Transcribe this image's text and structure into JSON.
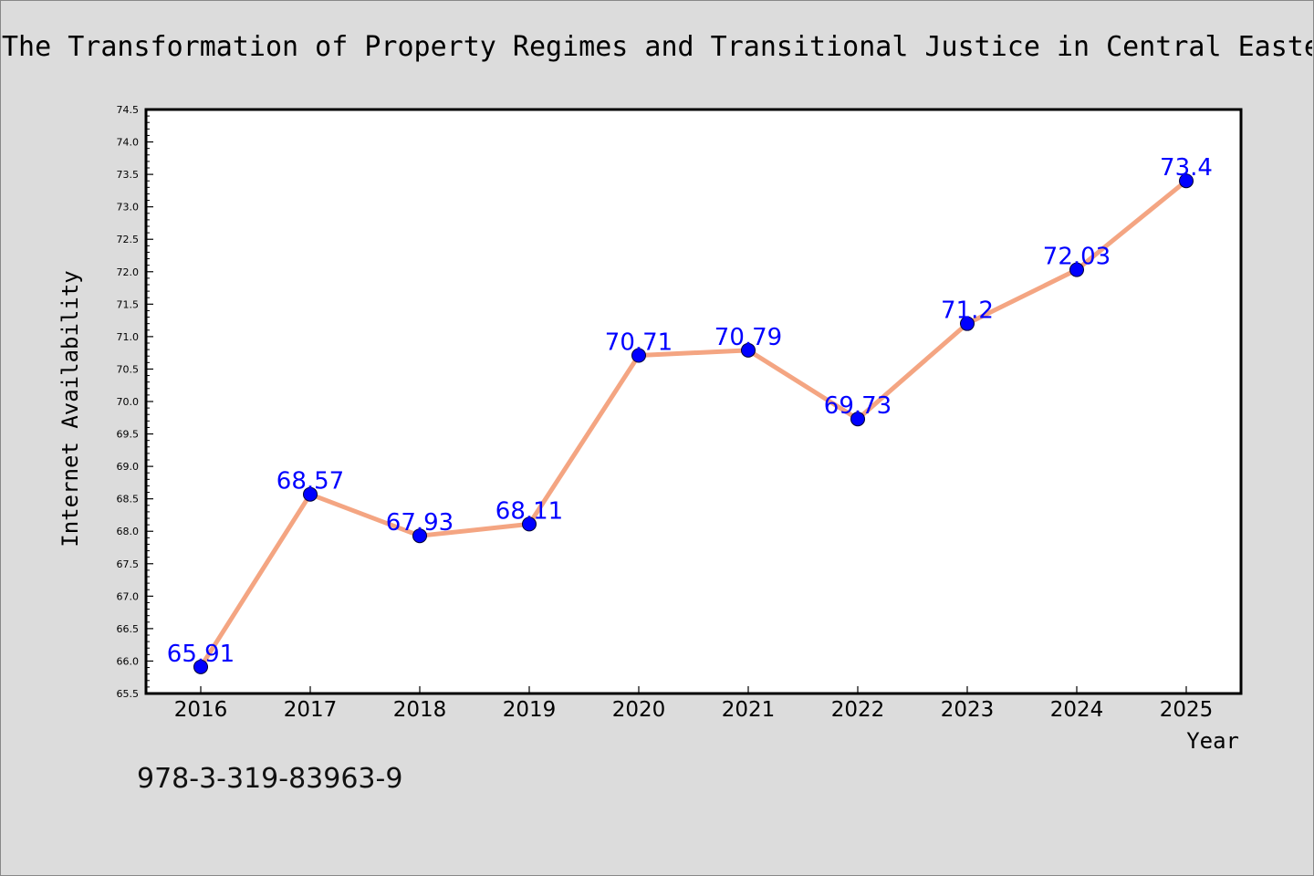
{
  "chart_data": {
    "type": "line",
    "title": "The Transformation of Property Regimes and Transitional Justice in Central Easte",
    "xlabel": "Year",
    "ylabel": "Internet Availability",
    "categories": [
      "2016",
      "2017",
      "2018",
      "2019",
      "2020",
      "2021",
      "2022",
      "2023",
      "2024",
      "2025"
    ],
    "values": [
      65.91,
      68.57,
      67.93,
      68.11,
      70.71,
      70.79,
      69.73,
      71.2,
      72.03,
      73.4
    ],
    "data_labels": [
      "65.91",
      "68.57",
      "67.93",
      "68.11",
      "70.71",
      "70.79",
      "69.73",
      "71.2",
      "72.03",
      "73.4"
    ],
    "ylim": [
      65.5,
      74.5
    ],
    "yticks": [
      "65.5",
      "66.0",
      "66.5",
      "67.0",
      "67.5",
      "68.0",
      "68.5",
      "69.0",
      "69.5",
      "70.0",
      "70.5",
      "71.0",
      "71.5",
      "72.0",
      "72.5",
      "73.0",
      "73.5",
      "74.0",
      "74.5"
    ],
    "grid": false,
    "colors": {
      "line": "#f4a582",
      "marker": "#0000ff",
      "label": "#0000ff",
      "background": "#dcdcdc",
      "plot_area": "#ffffff"
    }
  },
  "footer": {
    "isbn": "978-3-319-83963-9"
  }
}
